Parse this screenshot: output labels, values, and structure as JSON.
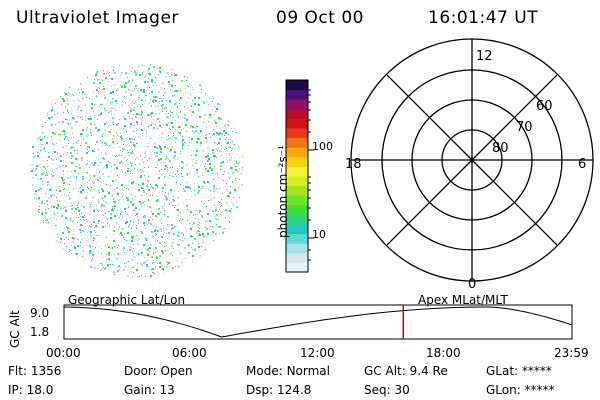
{
  "header": {
    "instrument": "Ultraviolet Imager",
    "date": "09 Oct 00",
    "time": "16:01:47 UT"
  },
  "colorbar": {
    "unit_label": "photon cm⁻²s⁻¹",
    "tick_100": "100",
    "tick_10": "10",
    "colors": [
      "#e8f3f6",
      "#cfe8ee",
      "#a7e3e6",
      "#5fd8d8",
      "#22c9c0",
      "#2fd37a",
      "#3fdc3c",
      "#6fe22a",
      "#a8e21f",
      "#d8ea1f",
      "#f4f238",
      "#f6d10a",
      "#f7a80c",
      "#f2741a",
      "#e63b1f",
      "#d21313",
      "#b40e2a",
      "#8e1064",
      "#4c0e78",
      "#1c0a4a"
    ]
  },
  "image_disk": {
    "colors": [
      "#2fd37a",
      "#3fdc3c",
      "#7fe08a",
      "#5fd8d8",
      "#22c9c0",
      "#a7e3e6",
      "#cfe8ee"
    ]
  },
  "polar_grid": {
    "mlt_top": "12",
    "mlt_left": "18",
    "mlt_right": "6",
    "mlt_bottom": "0",
    "lat_60": "60",
    "lat_70": "70",
    "lat_80": "80"
  },
  "orbit_panel": {
    "left_title": "Geographic Lat/Lon",
    "right_title": "Apex MLat/MLT",
    "axis_label": "GC Alt",
    "y_top": "9.0",
    "y_bottom": "1.8",
    "time_ticks": [
      "00:00",
      "06:00",
      "12:00",
      "18:00",
      "23:59"
    ],
    "marker_color": "#cc0000"
  },
  "status": {
    "flt_label": "Flt:",
    "flt_value": "1356",
    "ip_label": "IP:",
    "ip_value": "18.0",
    "door_label": "Door:",
    "door_value": "Open",
    "gain_label": "Gain:",
    "gain_value": "13",
    "mode_label": "Mode:",
    "mode_value": "Normal",
    "dsp_label": "Dsp:",
    "dsp_value": "124.8",
    "gcalt_label": "GC Alt:",
    "gcalt_value": "9.4 Re",
    "seq_label": "Seq:",
    "seq_value": "30",
    "glat_label": "GLat:",
    "glat_value": "*****",
    "glon_label": "GLon:",
    "glon_value": "*****"
  }
}
